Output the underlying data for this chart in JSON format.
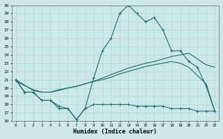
{
  "xlabel": "Humidex (Indice chaleur)",
  "bg_color": "#cce8e8",
  "grid_color": "#b0d8d8",
  "line_color": "#1a6b6b",
  "x_ticks": [
    0,
    1,
    2,
    3,
    4,
    5,
    6,
    7,
    8,
    9,
    10,
    11,
    12,
    13,
    14,
    15,
    16,
    17,
    18,
    19,
    20,
    21,
    22,
    23
  ],
  "ylim": [
    16,
    30
  ],
  "xlim": [
    -0.5,
    23.5
  ],
  "yticks": [
    16,
    17,
    18,
    19,
    20,
    21,
    22,
    23,
    24,
    25,
    26,
    27,
    28,
    29,
    30
  ],
  "line1_x": [
    0,
    1,
    2,
    3,
    4,
    5,
    6,
    7,
    8,
    9,
    10,
    11,
    12,
    13,
    14,
    15,
    16,
    17,
    18,
    19,
    20,
    21,
    22,
    23
  ],
  "line1_y": [
    21.0,
    19.5,
    19.5,
    18.5,
    18.5,
    17.5,
    17.5,
    16.2,
    17.5,
    21.2,
    24.5,
    26.0,
    29.0,
    30.0,
    29.0,
    28.0,
    28.5,
    27.0,
    24.5,
    24.5,
    23.2,
    22.5,
    20.2,
    17.2
  ],
  "line2_x": [
    0,
    2,
    3,
    4,
    5,
    6,
    7,
    8,
    9,
    10,
    11,
    12,
    13,
    14,
    15,
    16,
    17,
    18,
    19,
    20,
    21,
    22,
    23
  ],
  "line2_y": [
    21.0,
    19.7,
    19.5,
    19.5,
    19.8,
    20.0,
    20.2,
    20.5,
    20.8,
    21.2,
    21.6,
    22.0,
    22.4,
    22.7,
    23.0,
    23.2,
    23.5,
    23.8,
    24.0,
    24.2,
    23.5,
    22.8,
    22.5
  ],
  "line3_x": [
    0,
    1,
    2,
    3,
    4,
    5,
    6,
    7,
    8,
    9,
    10,
    11,
    12,
    13,
    14,
    15,
    16,
    17,
    18,
    19,
    20,
    21,
    22,
    23
  ],
  "line3_y": [
    20.8,
    20.3,
    19.8,
    19.5,
    19.5,
    19.7,
    20.0,
    20.2,
    20.5,
    20.8,
    21.0,
    21.3,
    21.7,
    22.0,
    22.3,
    22.6,
    22.8,
    23.0,
    23.2,
    23.0,
    22.5,
    21.5,
    20.5,
    17.2
  ],
  "line4_x": [
    0,
    1,
    2,
    3,
    4,
    5,
    6,
    7,
    8,
    9,
    10,
    11,
    12,
    13,
    14,
    15,
    16,
    17,
    18,
    19,
    20,
    21,
    22,
    23
  ],
  "line4_y": [
    21.0,
    19.5,
    19.5,
    18.5,
    18.5,
    17.8,
    17.5,
    16.2,
    17.5,
    18.0,
    18.0,
    18.0,
    18.0,
    18.0,
    17.8,
    17.8,
    17.8,
    17.8,
    17.5,
    17.5,
    17.5,
    17.2,
    17.2,
    17.2
  ]
}
